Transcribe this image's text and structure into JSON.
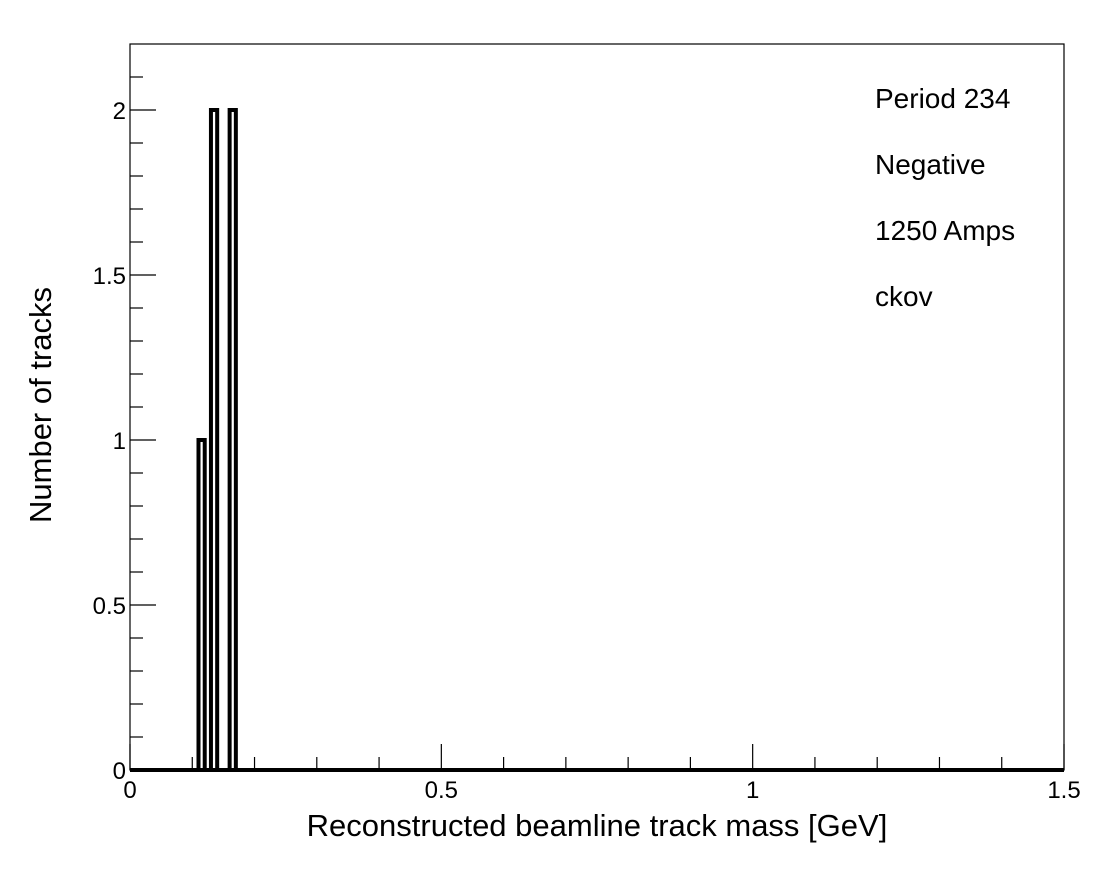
{
  "chart_data": {
    "type": "bar",
    "subtype": "histogram",
    "xlabel": "Reconstructed beamline track mass [GeV]",
    "ylabel": "Number of tracks",
    "xlim": [
      0,
      1.5
    ],
    "ylim": [
      0,
      2.2
    ],
    "x_ticks": [
      {
        "value": 0,
        "label": "0"
      },
      {
        "value": 0.5,
        "label": "0.5"
      },
      {
        "value": 1,
        "label": "1"
      },
      {
        "value": 1.5,
        "label": "1.5"
      }
    ],
    "y_ticks": [
      {
        "value": 0,
        "label": "0"
      },
      {
        "value": 0.5,
        "label": "0.5"
      },
      {
        "value": 1,
        "label": "1"
      },
      {
        "value": 1.5,
        "label": "1.5"
      },
      {
        "value": 2,
        "label": "2"
      }
    ],
    "bin_width": 0.01,
    "bins": [
      {
        "x_low": 0.11,
        "x_high": 0.12,
        "count": 1
      },
      {
        "x_low": 0.12,
        "x_high": 0.13,
        "count": 0
      },
      {
        "x_low": 0.13,
        "x_high": 0.14,
        "count": 2
      },
      {
        "x_low": 0.14,
        "x_high": 0.15,
        "count": 0
      },
      {
        "x_low": 0.15,
        "x_high": 0.16,
        "count": 0
      },
      {
        "x_low": 0.16,
        "x_high": 0.17,
        "count": 2
      }
    ],
    "annotations": [
      "Period 234",
      "Negative",
      "1250 Amps",
      "ckov"
    ],
    "grid": false,
    "line_color": "#000000"
  }
}
